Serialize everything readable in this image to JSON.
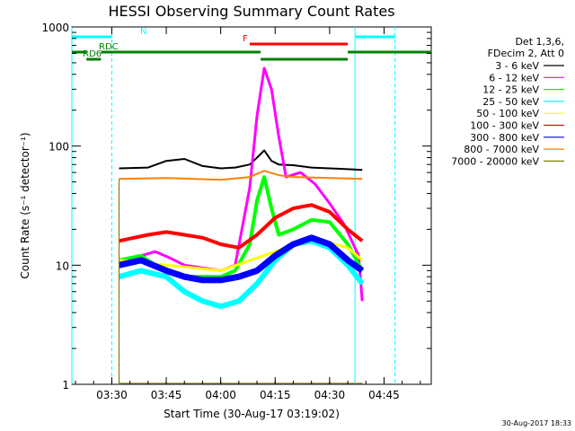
{
  "chart_data": {
    "type": "line",
    "title": "HESSI Observing Summary Count Rates",
    "xlabel": "Start Time (30-Aug-17 03:19:02)",
    "ylabel": "Count Rate (s⁻¹ detector⁻¹)",
    "y_scale": "log",
    "ylim": [
      1,
      1000
    ],
    "xlim": [
      "03:19",
      "04:58"
    ],
    "x_ticks": [
      "03:30",
      "03:45",
      "04:00",
      "04:15",
      "04:30",
      "04:45"
    ],
    "y_ticks": [
      "1",
      "10",
      "100",
      "1000"
    ],
    "grid": false,
    "legend_position": "right",
    "legend_header": [
      "Det 1,3,6,",
      "FDecim 2, Att 0"
    ],
    "timestamp": "30-Aug-2017 18:33",
    "series": [
      {
        "name": "3 - 6 keV",
        "color": "#000000",
        "x": [
          "03:32",
          "03:40",
          "03:45",
          "03:50",
          "03:55",
          "04:00",
          "04:04",
          "04:08",
          "04:10",
          "04:12",
          "04:14",
          "04:16",
          "04:20",
          "04:25",
          "04:30",
          "04:35",
          "04:39"
        ],
        "values": [
          65,
          66,
          75,
          78,
          68,
          65,
          66,
          70,
          80,
          92,
          75,
          70,
          69,
          66,
          65,
          64,
          63
        ]
      },
      {
        "name": "6 - 12 keV",
        "color": "#ff00ff",
        "x": [
          "03:32",
          "03:38",
          "03:42",
          "03:46",
          "03:50",
          "03:55",
          "04:00",
          "04:04",
          "04:08",
          "04:10",
          "04:12",
          "04:14",
          "04:16",
          "04:18",
          "04:22",
          "04:26",
          "04:30",
          "04:34",
          "04:38",
          "04:39"
        ],
        "values": [
          11,
          12,
          13,
          11.5,
          10,
          9.5,
          9,
          10,
          45,
          180,
          450,
          300,
          120,
          55,
          60,
          48,
          33,
          22,
          12,
          5
        ]
      },
      {
        "name": "12 - 25 keV",
        "color": "#00ff00",
        "x": [
          "03:32",
          "03:38",
          "03:42",
          "03:46",
          "03:50",
          "03:55",
          "04:00",
          "04:04",
          "04:08",
          "04:10",
          "04:12",
          "04:14",
          "04:16",
          "04:20",
          "04:25",
          "04:30",
          "04:35",
          "04:39"
        ],
        "values": [
          11,
          12,
          10,
          9,
          8,
          8,
          8,
          9,
          15,
          35,
          55,
          30,
          18,
          20,
          24,
          23,
          15,
          9
        ]
      },
      {
        "name": "25 - 50 keV",
        "color": "#00ffff",
        "x": [
          "03:32",
          "03:38",
          "03:45",
          "03:50",
          "03:55",
          "04:00",
          "04:05",
          "04:10",
          "04:15",
          "04:20",
          "04:25",
          "04:30",
          "04:35",
          "04:39"
        ],
        "values": [
          8,
          9,
          8,
          6,
          5,
          4.5,
          5,
          7,
          11,
          15,
          16,
          14,
          10,
          7
        ]
      },
      {
        "name": "50 - 100 keV",
        "color": "#ffff00",
        "x": [
          "03:32",
          "03:45",
          "04:00",
          "04:15",
          "04:25",
          "04:35",
          "04:39"
        ],
        "values": [
          11,
          10,
          9,
          13,
          17,
          14,
          11
        ]
      },
      {
        "name": "100 - 300 keV",
        "color": "#ff0000",
        "x": [
          "03:32",
          "03:40",
          "03:45",
          "03:50",
          "03:55",
          "04:00",
          "04:05",
          "04:10",
          "04:15",
          "04:20",
          "04:25",
          "04:30",
          "04:35",
          "04:39"
        ],
        "values": [
          16,
          18,
          19,
          18,
          17,
          15,
          14,
          18,
          25,
          30,
          32,
          28,
          20,
          16
        ]
      },
      {
        "name": "300 - 800 keV",
        "color": "#0000ff",
        "x": [
          "03:32",
          "03:38",
          "03:45",
          "03:50",
          "03:55",
          "04:00",
          "04:05",
          "04:10",
          "04:15",
          "04:20",
          "04:25",
          "04:30",
          "04:35",
          "04:39"
        ],
        "values": [
          10,
          11,
          9,
          8,
          7.5,
          7.5,
          8,
          9,
          12,
          15,
          17,
          15,
          11,
          9
        ]
      },
      {
        "name": "800 - 7000 keV",
        "color": "#ff8000",
        "x": [
          "03:32",
          "03:45",
          "04:00",
          "04:08",
          "04:12",
          "04:16",
          "04:20",
          "04:30",
          "04:39"
        ],
        "values": [
          53,
          54,
          52,
          55,
          62,
          57,
          55,
          54,
          53
        ]
      },
      {
        "name": "7000 - 20000 keV",
        "color": "#808000",
        "x": [
          "03:32",
          "04:39"
        ],
        "values": [
          1.02,
          1.02
        ]
      }
    ],
    "annotations": [
      {
        "label": "N",
        "color": "#00ffff",
        "intervals": [
          [
            "03:19",
            "03:30"
          ],
          [
            "04:37",
            "04:48"
          ]
        ]
      },
      {
        "label": "F",
        "color": "#ff0000",
        "intervals": [
          [
            "04:08",
            "04:35"
          ]
        ]
      },
      {
        "label": "RDC",
        "color": "#008000",
        "intervals": [
          [
            "03:19",
            "03:23"
          ],
          [
            "03:27",
            "04:11"
          ],
          [
            "04:35",
            "04:58"
          ]
        ]
      },
      {
        "label": "RD6",
        "color": "#008000",
        "intervals": [
          [
            "03:23",
            "03:27"
          ],
          [
            "04:11",
            "04:35"
          ]
        ]
      }
    ],
    "vlines": [
      {
        "x": "03:19",
        "color": "#00ffff",
        "style": "solid"
      },
      {
        "x": "03:30",
        "color": "#00ffff",
        "style": "dashed"
      },
      {
        "x": "04:37",
        "color": "#00ffff",
        "style": "solid"
      },
      {
        "x": "04:48",
        "color": "#00ffff",
        "style": "dashed"
      }
    ]
  }
}
